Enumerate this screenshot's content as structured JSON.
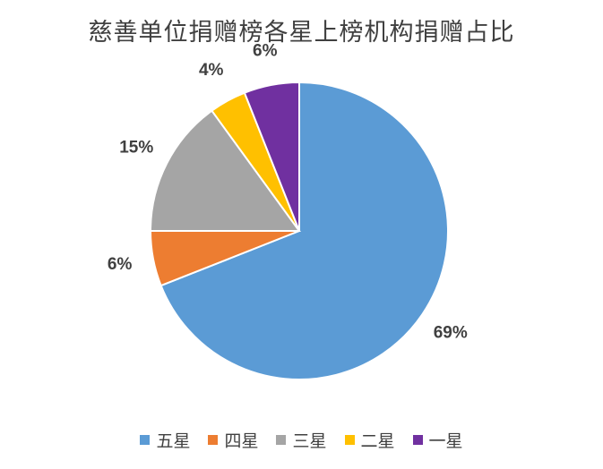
{
  "chart_data": {
    "type": "pie",
    "title": "慈善单位捐赠榜各星上榜机构捐赠占比",
    "categories": [
      "五星",
      "四星",
      "三星",
      "二星",
      "一星"
    ],
    "values": [
      69,
      6,
      15,
      4,
      6
    ],
    "value_unit": "%",
    "data_labels": [
      "69%",
      "6%",
      "15%",
      "4%",
      "6%"
    ],
    "colors": [
      "#5B9BD5",
      "#ED7D31",
      "#A5A5A5",
      "#FFC000",
      "#7030A0"
    ],
    "legend_position": "bottom",
    "start_angle": "12 o'clock",
    "direction": "clockwise"
  }
}
